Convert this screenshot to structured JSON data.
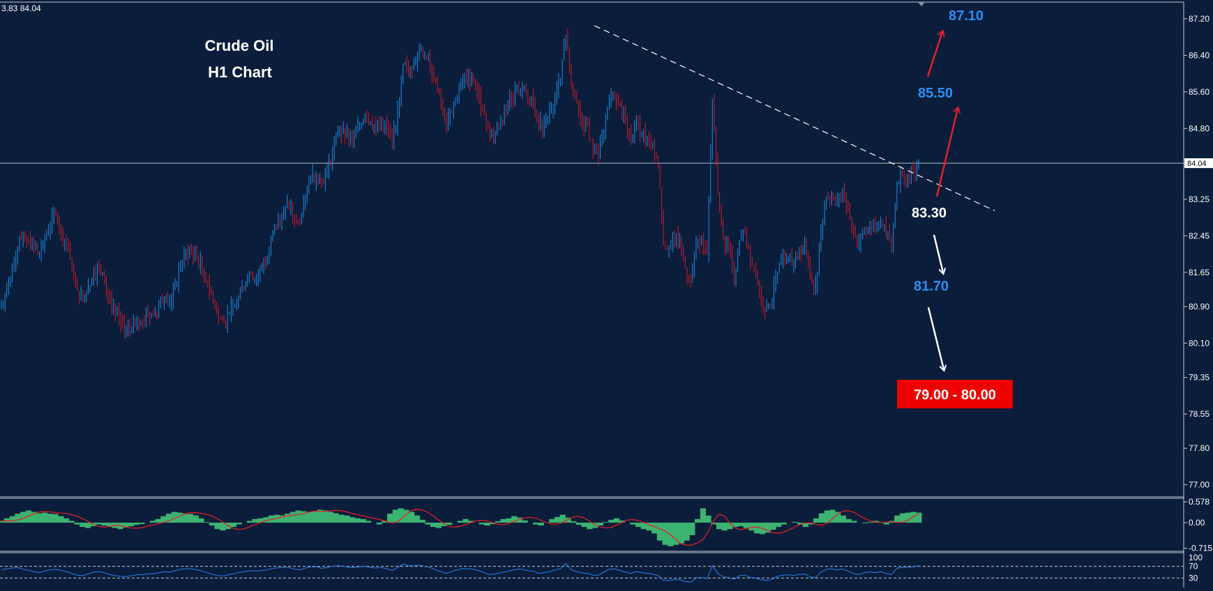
{
  "header": {
    "ohlc_text": "3.83 84.04"
  },
  "annotations": {
    "title_line1": "Crude Oil",
    "title_line2": "H1 Chart",
    "current_price_label": "84.04",
    "target_87": "87.10",
    "target_85": "85.50",
    "level_83": "83.30",
    "target_81": "81.70",
    "target_zone": "79.00 - 80.00"
  },
  "colors": {
    "background": "#0a1d3a",
    "bull_candle": "#1e90e6",
    "bear_candle": "#d11a2a",
    "price_label_blue": "#2f8ef5",
    "zone_red": "#ee0000",
    "macd_hist": "#3cb371",
    "macd_signal": "#e0202a",
    "rsi_line": "#2f7fe8"
  },
  "chart_data": [
    {
      "type": "candlestick",
      "title": "Crude Oil H1 Chart",
      "y_ticks": [
        "87.20",
        "86.40",
        "85.60",
        "84.80",
        "83.25",
        "82.45",
        "81.65",
        "80.90",
        "80.10",
        "79.35",
        "78.55",
        "77.80",
        "77.00"
      ],
      "ylim": [
        76.75,
        87.55
      ],
      "current_price": 84.04,
      "close_series": [
        80.95,
        81.3,
        81.7,
        82.2,
        82.5,
        82.35,
        82.15,
        82.1,
        82.4,
        82.7,
        82.9,
        82.55,
        82.3,
        81.7,
        81.25,
        81.0,
        81.35,
        81.65,
        81.75,
        81.45,
        81.05,
        80.8,
        80.55,
        80.35,
        80.45,
        80.65,
        80.55,
        80.7,
        80.75,
        80.95,
        81.1,
        81.0,
        81.35,
        81.85,
        82.1,
        82.15,
        82.0,
        81.75,
        81.4,
        81.0,
        80.65,
        80.55,
        80.75,
        80.95,
        81.2,
        81.45,
        81.6,
        81.55,
        81.75,
        82.0,
        82.55,
        82.8,
        83.0,
        83.1,
        82.8,
        82.7,
        83.3,
        83.75,
        83.8,
        83.6,
        83.85,
        84.3,
        84.7,
        84.75,
        84.55,
        84.6,
        84.85,
        85.1,
        84.95,
        84.85,
        85.0,
        84.85,
        84.55,
        85.2,
        86.2,
        86.05,
        86.2,
        86.55,
        86.4,
        86.2,
        85.8,
        85.3,
        84.9,
        85.2,
        85.5,
        85.8,
        85.95,
        85.85,
        85.55,
        85.1,
        84.65,
        84.7,
        84.95,
        85.2,
        85.4,
        85.65,
        85.7,
        85.45,
        85.35,
        84.85,
        84.9,
        85.2,
        85.5,
        85.85,
        86.85,
        85.7,
        85.35,
        84.95,
        84.85,
        84.3,
        84.15,
        84.75,
        85.45,
        85.55,
        85.3,
        84.9,
        84.6,
        84.95,
        84.7,
        84.55,
        84.4,
        83.95,
        82.3,
        82.2,
        82.35,
        82.3,
        81.75,
        81.45,
        82.3,
        82.35,
        82.05,
        85.35,
        83.4,
        82.4,
        82.2,
        81.5,
        82.35,
        82.5,
        81.9,
        81.65,
        81.05,
        80.85,
        81.05,
        81.65,
        81.95,
        82.0,
        81.9,
        82.1,
        82.25,
        81.55,
        81.4,
        82.5,
        83.3,
        83.35,
        83.25,
        83.4,
        83.05,
        82.5,
        82.3,
        82.55,
        82.7,
        82.55,
        82.75,
        82.5,
        82.2,
        83.6,
        83.75,
        83.8,
        83.85,
        84.04
      ],
      "overlays": {
        "trendline": {
          "x1": 0.49,
          "y1": 87.05,
          "x2": 0.82,
          "y2": 83.0,
          "style": "dashed",
          "color": "#ffffff"
        }
      }
    },
    {
      "type": "histogram",
      "name": "MACD",
      "y_ticks": [
        "0.578",
        "0.00",
        "-0.715"
      ],
      "ylim": [
        -0.78,
        0.66
      ],
      "values": [
        0.05,
        0.12,
        0.18,
        0.25,
        0.3,
        0.34,
        0.3,
        0.26,
        0.28,
        0.25,
        0.24,
        0.18,
        0.12,
        0.05,
        -0.05,
        -0.12,
        -0.15,
        -0.1,
        -0.05,
        -0.08,
        -0.12,
        -0.15,
        -0.18,
        -0.14,
        -0.1,
        -0.06,
        -0.04,
        0.0,
        0.05,
        0.1,
        0.18,
        0.25,
        0.3,
        0.28,
        0.26,
        0.24,
        0.2,
        0.12,
        0.02,
        -0.08,
        -0.18,
        -0.22,
        -0.18,
        -0.12,
        -0.05,
        0.0,
        0.05,
        0.1,
        0.12,
        0.15,
        0.2,
        0.22,
        0.2,
        0.25,
        0.3,
        0.34,
        0.32,
        0.3,
        0.32,
        0.36,
        0.34,
        0.3,
        0.26,
        0.22,
        0.2,
        0.15,
        0.12,
        0.1,
        0.05,
        0.0,
        -0.05,
        0.05,
        0.25,
        0.36,
        0.4,
        0.36,
        0.3,
        0.2,
        0.08,
        -0.05,
        -0.12,
        -0.15,
        -0.1,
        -0.06,
        0.0,
        0.05,
        0.1,
        0.05,
        0.0,
        -0.05,
        -0.08,
        -0.04,
        0.04,
        0.1,
        0.12,
        0.18,
        0.14,
        0.06,
        0.0,
        -0.05,
        -0.08,
        0.0,
        0.1,
        0.16,
        0.22,
        0.14,
        0.04,
        -0.06,
        -0.12,
        -0.18,
        -0.15,
        -0.08,
        0.02,
        0.08,
        0.12,
        0.06,
        0.0,
        -0.05,
        -0.12,
        -0.18,
        -0.22,
        -0.3,
        -0.5,
        -0.62,
        -0.66,
        -0.62,
        -0.58,
        -0.5,
        -0.35,
        0.1,
        0.4,
        0.2,
        -0.05,
        -0.18,
        -0.22,
        -0.18,
        -0.12,
        -0.1,
        -0.15,
        -0.22,
        -0.3,
        -0.32,
        -0.28,
        -0.2,
        -0.12,
        -0.05,
        0.0,
        0.02,
        -0.05,
        -0.12,
        -0.05,
        0.12,
        0.26,
        0.34,
        0.36,
        0.3,
        0.2,
        0.1,
        0.05,
        0.0,
        -0.02,
        0.02,
        0.05,
        0.02,
        -0.05,
        0.05,
        0.2,
        0.26,
        0.28,
        0.3,
        0.28
      ]
    },
    {
      "type": "line",
      "name": "RSI",
      "y_ticks": [
        "100",
        "70",
        "30"
      ],
      "ylim": [
        0,
        100
      ],
      "levels": [
        70,
        30
      ],
      "values": [
        58,
        62,
        64,
        66,
        60,
        56,
        52,
        48,
        54,
        58,
        60,
        56,
        52,
        45,
        40,
        38,
        44,
        50,
        52,
        48,
        42,
        38,
        36,
        35,
        38,
        42,
        41,
        44,
        45,
        48,
        52,
        50,
        55,
        60,
        62,
        61,
        58,
        54,
        48,
        42,
        38,
        37,
        42,
        46,
        50,
        53,
        55,
        54,
        56,
        58,
        63,
        65,
        66,
        66,
        60,
        58,
        64,
        68,
        68,
        63,
        66,
        70,
        72,
        71,
        66,
        66,
        68,
        70,
        66,
        64,
        66,
        62,
        56,
        66,
        78,
        72,
        72,
        74,
        70,
        66,
        58,
        52,
        46,
        52,
        58,
        62,
        62,
        60,
        55,
        48,
        42,
        44,
        48,
        52,
        56,
        60,
        60,
        55,
        53,
        46,
        48,
        52,
        58,
        62,
        80,
        58,
        52,
        47,
        46,
        40,
        40,
        50,
        60,
        61,
        56,
        50,
        46,
        52,
        48,
        46,
        44,
        38,
        22,
        22,
        25,
        24,
        18,
        16,
        30,
        32,
        28,
        72,
        46,
        34,
        32,
        26,
        38,
        40,
        32,
        30,
        24,
        22,
        26,
        36,
        40,
        41,
        39,
        42,
        44,
        34,
        32,
        50,
        60,
        61,
        58,
        61,
        54,
        45,
        42,
        48,
        51,
        48,
        52,
        46,
        42,
        64,
        66,
        67,
        68,
        72
      ]
    }
  ]
}
